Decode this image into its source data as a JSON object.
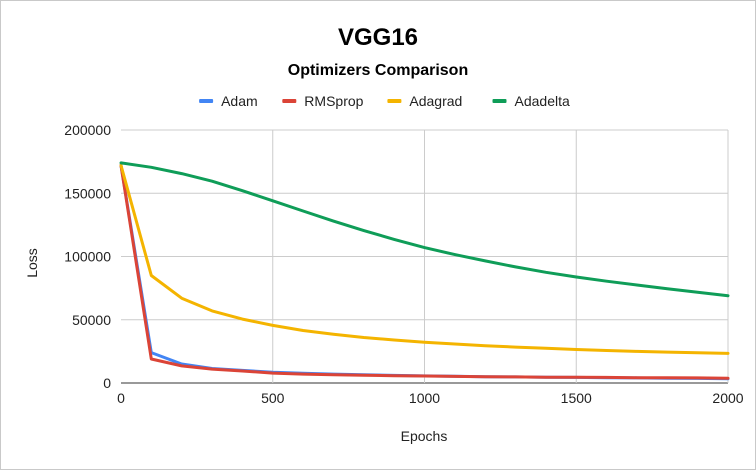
{
  "chart_data": {
    "type": "line",
    "title": "VGG16",
    "subtitle": "Optimizers Comparison",
    "xlabel": "Epochs",
    "ylabel": "Loss",
    "xlim": [
      0,
      2000
    ],
    "ylim": [
      0,
      200000
    ],
    "xticks": [
      0,
      500,
      1000,
      1500,
      2000
    ],
    "yticks": [
      0,
      50000,
      100000,
      150000,
      200000
    ],
    "grid": true,
    "legend_position": "top",
    "x": [
      0,
      100,
      200,
      300,
      400,
      500,
      600,
      700,
      800,
      900,
      1000,
      1100,
      1200,
      1300,
      1400,
      1500,
      1600,
      1700,
      1800,
      1900,
      2000
    ],
    "series": [
      {
        "name": "Adam",
        "color": "#4285f4",
        "values": [
          172000,
          24000,
          15000,
          11500,
          10000,
          8500,
          7700,
          7000,
          6500,
          6000,
          5600,
          5300,
          5000,
          4800,
          4600,
          4400,
          4200,
          4000,
          3800,
          3600,
          3400
        ]
      },
      {
        "name": "RMSprop",
        "color": "#db4437",
        "values": [
          172000,
          19000,
          13500,
          11000,
          9500,
          7800,
          7000,
          6500,
          6100,
          5800,
          5500,
          5200,
          5000,
          4800,
          4600,
          4500,
          4400,
          4200,
          4100,
          4000,
          3800
        ]
      },
      {
        "name": "Adagrad",
        "color": "#f4b400",
        "values": [
          172000,
          85000,
          67000,
          57000,
          50500,
          45500,
          41500,
          38500,
          36000,
          34000,
          32200,
          30800,
          29500,
          28400,
          27400,
          26500,
          25700,
          25000,
          24400,
          23900,
          23400
        ]
      },
      {
        "name": "Adadelta",
        "color": "#0f9d58",
        "values": [
          174000,
          170500,
          165500,
          159500,
          152000,
          144000,
          136000,
          128000,
          120500,
          113500,
          107000,
          101500,
          96500,
          91800,
          87500,
          83800,
          80500,
          77500,
          74500,
          71800,
          69000
        ]
      }
    ]
  }
}
